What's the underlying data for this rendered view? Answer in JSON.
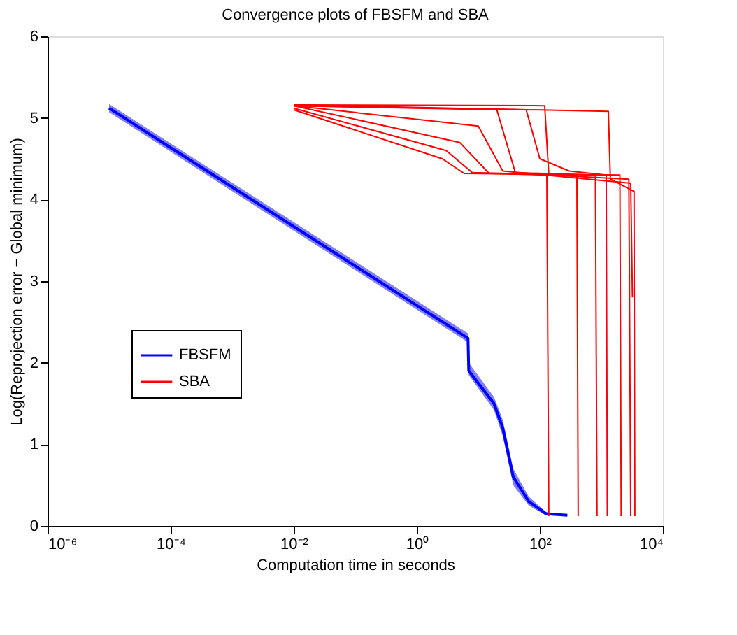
{
  "chart_data": {
    "type": "line",
    "title": "Convergence plots of FBSFM and SBA",
    "xlabel": "Computation time in seconds",
    "ylabel": "Log(Reprojection error − Global minimum)",
    "log": "x",
    "xlim": [
      1e-06,
      10000
    ],
    "xticks": [
      {
        "value": 1e-06,
        "label": "10⁻⁶"
      },
      {
        "value": 0.0001,
        "label": "10⁻⁴"
      },
      {
        "value": 0.01,
        "label": "10⁻²"
      },
      {
        "value": 1,
        "label": "10⁰"
      },
      {
        "value": 100,
        "label": "10²"
      },
      {
        "value": 10000,
        "label": "10⁴"
      }
    ],
    "ylim": [
      0,
      6
    ],
    "yticks": [
      0,
      1,
      2,
      3,
      4,
      5,
      6
    ],
    "grid": false,
    "legend": "left",
    "line_style": "solid",
    "marker": "none",
    "series": [
      {
        "name": "FBSFM",
        "color": "#0000ff",
        "x": [
          1e-05,
          6.8,
          7,
          18,
          25,
          37,
          66,
          126,
          280
        ],
        "values": [
          5.12,
          2.3,
          1.9,
          1.5,
          1.2,
          0.6,
          0.3,
          0.15,
          0.13
        ],
        "lower": [
          5.07,
          2.25,
          1.85,
          1.42,
          1.1,
          0.5,
          0.25,
          0.13,
          0.12
        ],
        "upper": [
          5.17,
          2.36,
          2.0,
          1.58,
          1.3,
          0.7,
          0.36,
          0.17,
          0.14
        ]
      },
      {
        "name": "SBA",
        "color": "#ff0000",
        "x": [
          0.01,
          2.6,
          5.9,
          2000,
          2100
        ],
        "values": [
          5.1,
          4.5,
          4.32,
          4.3,
          0.12
        ]
      },
      {
        "color": "#ff0000",
        "x": [
          0.01,
          5,
          15,
          130,
          140
        ],
        "values": [
          5.15,
          4.7,
          4.32,
          4.3,
          0.12
        ]
      },
      {
        "color": "#ff0000",
        "x": [
          0.01,
          20,
          40,
          800,
          850
        ],
        "values": [
          5.15,
          5.1,
          4.33,
          4.3,
          0.12
        ]
      },
      {
        "color": "#ff0000",
        "x": [
          0.01,
          120,
          140,
          2800,
          3000
        ],
        "values": [
          5.16,
          5.15,
          4.3,
          4.25,
          0.12
        ]
      },
      {
        "color": "#ff0000",
        "x": [
          0.01,
          1300,
          1400,
          3400,
          3500
        ],
        "values": [
          5.16,
          5.08,
          4.25,
          4.1,
          0.12
        ]
      },
      {
        "color": "#ff0000",
        "x": [
          0.01,
          3,
          8,
          400,
          420
        ],
        "values": [
          5.12,
          4.6,
          4.33,
          4.3,
          0.12
        ]
      },
      {
        "color": "#ff0000",
        "x": [
          0.01,
          60,
          100,
          300,
          1200,
          1250
        ],
        "values": [
          5.15,
          5.1,
          4.5,
          4.35,
          4.3,
          0.12
        ]
      },
      {
        "color": "#ff0000",
        "x": [
          0.01,
          10,
          25,
          3000,
          3200
        ],
        "values": [
          5.15,
          4.9,
          4.35,
          4.2,
          2.8
        ]
      }
    ]
  }
}
